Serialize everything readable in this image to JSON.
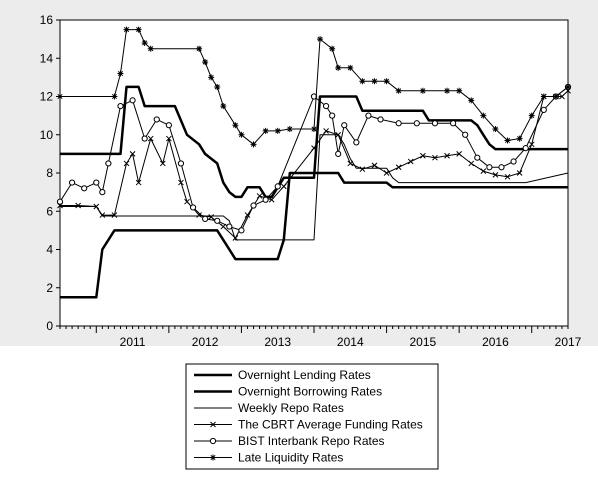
{
  "chart_data": {
    "type": "line",
    "title": "",
    "xlabel": "",
    "ylabel": "",
    "ylim": [
      0,
      16
    ],
    "xlim": [
      "2010-07",
      "2017-07"
    ],
    "yticks": [
      0,
      2,
      4,
      6,
      8,
      10,
      12,
      14,
      16
    ],
    "xtick_labels": [
      "2011",
      "2012",
      "2013",
      "2014",
      "2015",
      "2016",
      "2017"
    ],
    "grid": false,
    "legend_position": "bottom",
    "plot_background": "#ffffff",
    "figure_background": "#ececec",
    "series": [
      {
        "name": "Overnight Lending Rates",
        "marker": "none",
        "stroke_width": 2.5,
        "points": [
          [
            "2010-07",
            9.0
          ],
          [
            "2011-05",
            9.0
          ],
          [
            "2011-06",
            12.5
          ],
          [
            "2011-08",
            12.5
          ],
          [
            "2011-09",
            11.5
          ],
          [
            "2012-02",
            11.5
          ],
          [
            "2012-04",
            10.0
          ],
          [
            "2012-06",
            9.5
          ],
          [
            "2012-07",
            9.0
          ],
          [
            "2012-09",
            8.5
          ],
          [
            "2012-10",
            7.5
          ],
          [
            "2012-11",
            7.0
          ],
          [
            "2012-12",
            6.75
          ],
          [
            "2013-01",
            6.75
          ],
          [
            "2013-02",
            7.25
          ],
          [
            "2013-04",
            7.25
          ],
          [
            "2013-05",
            6.75
          ],
          [
            "2013-06",
            6.75
          ],
          [
            "2013-07",
            7.25
          ],
          [
            "2013-08",
            7.75
          ],
          [
            "2014-01",
            7.75
          ],
          [
            "2014-02",
            12.0
          ],
          [
            "2014-08",
            12.0
          ],
          [
            "2014-09",
            11.25
          ],
          [
            "2015-07",
            11.25
          ],
          [
            "2015-08",
            10.75
          ],
          [
            "2016-03",
            10.75
          ],
          [
            "2016-04",
            10.5
          ],
          [
            "2016-05",
            10.0
          ],
          [
            "2016-06",
            9.5
          ],
          [
            "2016-07",
            9.25
          ],
          [
            "2017-07",
            9.25
          ]
        ]
      },
      {
        "name": "Overnight Borrowing Rates",
        "marker": "none",
        "stroke_width": 2.5,
        "points": [
          [
            "2010-07",
            1.5
          ],
          [
            "2011-01",
            1.5
          ],
          [
            "2011-02",
            4.0
          ],
          [
            "2011-04",
            5.0
          ],
          [
            "2012-09",
            5.0
          ],
          [
            "2012-10",
            4.5
          ],
          [
            "2012-12",
            3.5
          ],
          [
            "2013-07",
            3.5
          ],
          [
            "2013-08",
            4.5
          ],
          [
            "2013-09",
            8.0
          ],
          [
            "2014-05",
            8.0
          ],
          [
            "2014-06",
            7.5
          ],
          [
            "2015-01",
            7.5
          ],
          [
            "2015-02",
            7.25
          ],
          [
            "2017-07",
            7.25
          ]
        ]
      },
      {
        "name": "Weekly Repo Rates",
        "marker": "none",
        "stroke_width": 1,
        "points": [
          [
            "2010-07",
            6.25
          ],
          [
            "2011-01",
            6.25
          ],
          [
            "2011-02",
            5.75
          ],
          [
            "2012-10",
            5.75
          ],
          [
            "2012-11",
            5.5
          ],
          [
            "2012-12",
            4.5
          ],
          [
            "2013-05",
            4.5
          ],
          [
            "2013-06",
            4.5
          ],
          [
            "2014-01",
            4.5
          ],
          [
            "2014-02",
            10.0
          ],
          [
            "2014-05",
            10.0
          ],
          [
            "2014-06",
            9.5
          ],
          [
            "2014-07",
            8.75
          ],
          [
            "2014-08",
            8.25
          ],
          [
            "2015-01",
            8.25
          ],
          [
            "2015-02",
            7.75
          ],
          [
            "2015-03",
            7.5
          ],
          [
            "2016-12",
            7.5
          ],
          [
            "2017-07",
            8.0
          ]
        ]
      },
      {
        "name": "The CBRT Average Funding Rates",
        "marker": "x",
        "stroke_width": 1,
        "points": [
          [
            "2010-07",
            6.3
          ],
          [
            "2010-10",
            6.3
          ],
          [
            "2011-01",
            6.25
          ],
          [
            "2011-02",
            5.8
          ],
          [
            "2011-04",
            5.8
          ],
          [
            "2011-06",
            8.5
          ],
          [
            "2011-07",
            9.0
          ],
          [
            "2011-08",
            7.5
          ],
          [
            "2011-10",
            9.8
          ],
          [
            "2011-12",
            8.5
          ],
          [
            "2012-01",
            9.8
          ],
          [
            "2012-03",
            7.5
          ],
          [
            "2012-04",
            6.5
          ],
          [
            "2012-06",
            5.8
          ],
          [
            "2012-08",
            5.7
          ],
          [
            "2012-10",
            5.2
          ],
          [
            "2012-12",
            4.6
          ],
          [
            "2013-02",
            5.8
          ],
          [
            "2013-04",
            6.8
          ],
          [
            "2013-06",
            6.6
          ],
          [
            "2013-08",
            7.3
          ],
          [
            "2014-01",
            9.3
          ],
          [
            "2014-03",
            10.2
          ],
          [
            "2014-05",
            10.0
          ],
          [
            "2014-07",
            8.5
          ],
          [
            "2014-09",
            8.2
          ],
          [
            "2014-11",
            8.4
          ],
          [
            "2015-01",
            8.0
          ],
          [
            "2015-03",
            8.3
          ],
          [
            "2015-05",
            8.6
          ],
          [
            "2015-07",
            8.9
          ],
          [
            "2015-09",
            8.8
          ],
          [
            "2015-11",
            8.9
          ],
          [
            "2016-01",
            9.0
          ],
          [
            "2016-03",
            8.5
          ],
          [
            "2016-05",
            8.1
          ],
          [
            "2016-07",
            7.9
          ],
          [
            "2016-09",
            7.8
          ],
          [
            "2016-11",
            8.0
          ],
          [
            "2017-01",
            9.5
          ],
          [
            "2017-03",
            12.0
          ],
          [
            "2017-05",
            12.0
          ],
          [
            "2017-06",
            12.0
          ],
          [
            "2017-07",
            12.3
          ]
        ]
      },
      {
        "name": "BIST Interbank Repo Rates",
        "marker": "o",
        "stroke_width": 1,
        "points": [
          [
            "2010-07",
            6.5
          ],
          [
            "2010-09",
            7.5
          ],
          [
            "2010-11",
            7.2
          ],
          [
            "2011-01",
            7.5
          ],
          [
            "2011-02",
            7.0
          ],
          [
            "2011-03",
            8.5
          ],
          [
            "2011-05",
            11.5
          ],
          [
            "2011-07",
            11.8
          ],
          [
            "2011-09",
            9.8
          ],
          [
            "2011-11",
            10.8
          ],
          [
            "2012-01",
            10.5
          ],
          [
            "2012-03",
            8.5
          ],
          [
            "2012-05",
            6.2
          ],
          [
            "2012-07",
            5.6
          ],
          [
            "2012-09",
            5.5
          ],
          [
            "2012-11",
            5.2
          ],
          [
            "2013-01",
            5.0
          ],
          [
            "2013-03",
            6.3
          ],
          [
            "2013-05",
            6.6
          ],
          [
            "2013-07",
            7.3
          ],
          [
            "2014-01",
            12.0
          ],
          [
            "2014-03",
            11.5
          ],
          [
            "2014-04",
            11.0
          ],
          [
            "2014-05",
            9.0
          ],
          [
            "2014-06",
            10.5
          ],
          [
            "2014-08",
            9.6
          ],
          [
            "2014-10",
            11.0
          ],
          [
            "2014-12",
            10.8
          ],
          [
            "2015-03",
            10.6
          ],
          [
            "2015-06",
            10.6
          ],
          [
            "2015-09",
            10.6
          ],
          [
            "2015-12",
            10.6
          ],
          [
            "2016-02",
            10.0
          ],
          [
            "2016-04",
            8.8
          ],
          [
            "2016-06",
            8.3
          ],
          [
            "2016-08",
            8.3
          ],
          [
            "2016-10",
            8.6
          ],
          [
            "2016-12",
            9.3
          ],
          [
            "2017-03",
            11.3
          ],
          [
            "2017-05",
            12.0
          ],
          [
            "2017-07",
            12.5
          ]
        ]
      },
      {
        "name": "Late Liquidity Rates",
        "marker": "*",
        "stroke_width": 1,
        "points": [
          [
            "2010-07",
            12.0
          ],
          [
            "2011-04",
            12.0
          ],
          [
            "2011-05",
            13.2
          ],
          [
            "2011-06",
            15.5
          ],
          [
            "2011-08",
            15.5
          ],
          [
            "2011-09",
            14.8
          ],
          [
            "2011-10",
            14.5
          ],
          [
            "2012-06",
            14.5
          ],
          [
            "2012-07",
            13.8
          ],
          [
            "2012-08",
            13.0
          ],
          [
            "2012-09",
            12.5
          ],
          [
            "2012-10",
            11.5
          ],
          [
            "2012-12",
            10.5
          ],
          [
            "2013-01",
            10.0
          ],
          [
            "2013-03",
            9.5
          ],
          [
            "2013-05",
            10.2
          ],
          [
            "2013-07",
            10.2
          ],
          [
            "2013-09",
            10.3
          ],
          [
            "2014-01",
            10.3
          ],
          [
            "2014-02",
            15.0
          ],
          [
            "2014-04",
            14.5
          ],
          [
            "2014-05",
            13.5
          ],
          [
            "2014-07",
            13.5
          ],
          [
            "2014-09",
            12.8
          ],
          [
            "2014-11",
            12.8
          ],
          [
            "2015-01",
            12.8
          ],
          [
            "2015-03",
            12.3
          ],
          [
            "2015-07",
            12.3
          ],
          [
            "2015-11",
            12.3
          ],
          [
            "2016-01",
            12.3
          ],
          [
            "2016-03",
            11.8
          ],
          [
            "2016-05",
            11.0
          ],
          [
            "2016-07",
            10.3
          ],
          [
            "2016-09",
            9.7
          ],
          [
            "2016-11",
            9.8
          ],
          [
            "2017-01",
            11.0
          ],
          [
            "2017-03",
            12.0
          ],
          [
            "2017-05",
            12.0
          ],
          [
            "2017-07",
            12.5
          ]
        ]
      }
    ]
  }
}
